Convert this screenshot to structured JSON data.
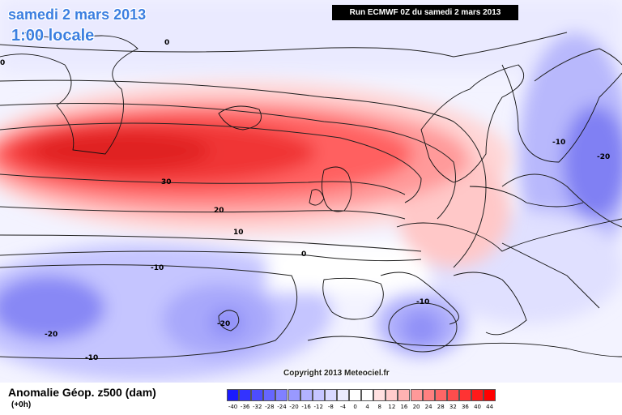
{
  "header": {
    "date": "samedi 2 mars 2013",
    "time": "1:00 locale",
    "run": "Run ECMWF 0Z du samedi 2 mars 2013"
  },
  "footer": {
    "variable": "Anomalie Géop. z500 (dam)",
    "lead": "(+0h)",
    "copyright": "Copyright 2013 Meteociel.fr"
  },
  "contour_labels": [
    "0",
    "0",
    "30",
    "20",
    "10",
    "0",
    "-10",
    "-10",
    "-20",
    "-20",
    "-10",
    "-10",
    "-20"
  ],
  "scale": {
    "ticks": [
      "-40",
      "-36",
      "-32",
      "-28",
      "-24",
      "-20",
      "-16",
      "-12",
      "-8",
      "-4",
      "0",
      "4",
      "8",
      "12",
      "16",
      "20",
      "24",
      "28",
      "32",
      "36",
      "40",
      "44"
    ],
    "colors": [
      "#1a1aff",
      "#3333ff",
      "#4d4dff",
      "#6666ff",
      "#8080ff",
      "#9999ff",
      "#b3b3ff",
      "#c6c6ff",
      "#d9d9ff",
      "#ececff",
      "#ffffff",
      "#ffffff",
      "#ffe0e0",
      "#ffcccc",
      "#ffb3b3",
      "#ff9999",
      "#ff8080",
      "#ff6666",
      "#ff4d4d",
      "#ff3333",
      "#ff1a1a",
      "#ff0000"
    ]
  },
  "colors": {
    "title": "#3b7fe0",
    "positive_core": "#ee2222",
    "negative_core": "#5050f0"
  }
}
